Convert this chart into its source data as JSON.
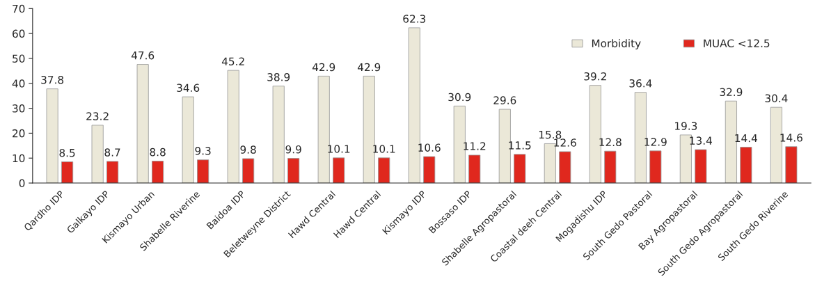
{
  "chart_data": {
    "type": "bar",
    "categories": [
      "Qardho IDP",
      "Galkayo IDP",
      "Kismayo Urban",
      "Shabelle Riverine",
      "Baidoa IDP",
      "Beletweyne District",
      "Hawd Central",
      "Hawd Central",
      "Kismayo IDP",
      "Bossaso IDP",
      "Shabelle Agropastoral",
      "Coastal deeh Central",
      "Mogadishu IDP",
      "South Gedo Pastoral",
      "Bay Agropastoral",
      "South Gedo Agropastoral",
      "South Gedo Riverine"
    ],
    "series": [
      {
        "name": "Morbidity",
        "color": "#ebe8d8",
        "values": [
          37.8,
          23.2,
          47.6,
          34.6,
          45.2,
          38.9,
          42.9,
          42.9,
          62.3,
          30.9,
          29.6,
          15.8,
          39.2,
          36.4,
          19.3,
          32.9,
          30.4
        ]
      },
      {
        "name": "MUAC <12.5",
        "color": "#e0281e",
        "values": [
          8.5,
          8.7,
          8.8,
          9.3,
          9.8,
          9.9,
          10.1,
          10.1,
          10.6,
          11.2,
          11.5,
          12.6,
          12.8,
          12.9,
          13.4,
          14.4,
          14.6
        ]
      }
    ],
    "ylim": [
      0,
      70
    ],
    "yticks": [
      0,
      10,
      20,
      30,
      40,
      50,
      60,
      70
    ],
    "data_labels": true,
    "legend": "top right",
    "grid": false
  }
}
